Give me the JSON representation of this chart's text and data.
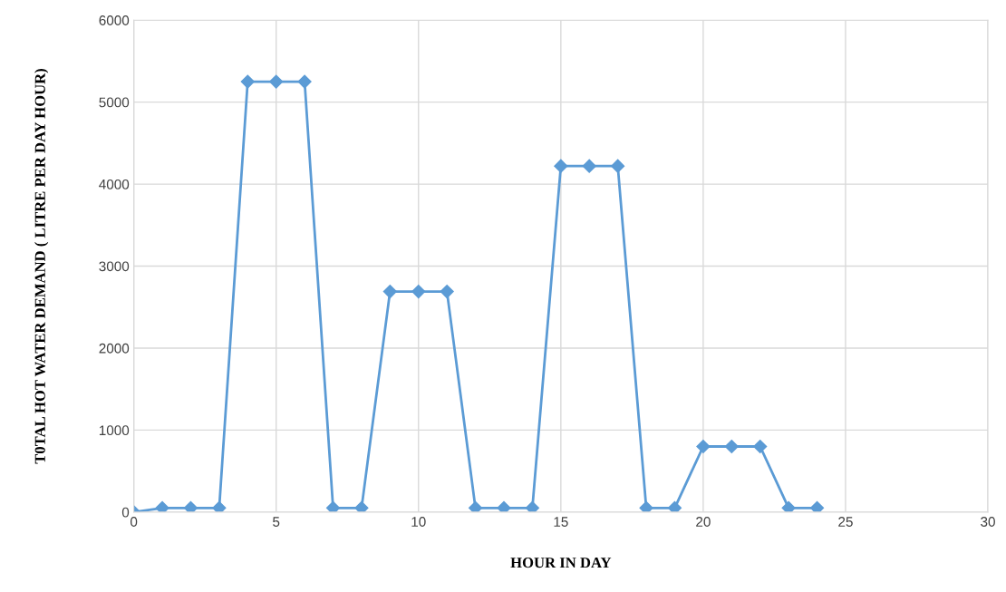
{
  "chart_data": {
    "type": "line",
    "xlabel": "HOUR IN DAY",
    "ylabel": "T0TAL HOT WATER DEMAND ( LITRE PER DAY HOUR)",
    "x": [
      0,
      1,
      2,
      3,
      4,
      5,
      6,
      7,
      8,
      9,
      10,
      11,
      12,
      13,
      14,
      15,
      16,
      17,
      18,
      19,
      20,
      21,
      22,
      23,
      24
    ],
    "series": [
      {
        "color": "#5b9bd5",
        "values": [
          0,
          50,
          50,
          50,
          5250,
          5250,
          5250,
          50,
          50,
          2690,
          2690,
          2690,
          50,
          50,
          50,
          4220,
          4220,
          4220,
          50,
          50,
          800,
          800,
          800,
          50,
          50
        ]
      }
    ],
    "xlim": [
      0,
      30
    ],
    "xticks": [
      0,
      5,
      10,
      15,
      20,
      25,
      30
    ],
    "ylim": [
      0,
      6000
    ],
    "yticks": [
      0,
      1000,
      2000,
      3000,
      4000,
      5000,
      6000
    ],
    "grid": true,
    "marker": "diamond",
    "line_style": "solid",
    "legend": false
  }
}
